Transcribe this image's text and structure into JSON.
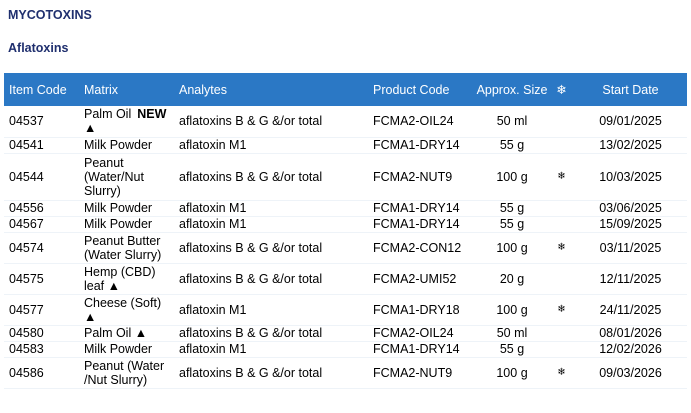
{
  "section_title": "MYCOTOXINS",
  "subsection_title": "Aflatoxins",
  "headers": {
    "item_code": "Item Code",
    "matrix": "Matrix",
    "analytes": "Analytes",
    "product_code": "Product Code",
    "approx_size": "Approx. Size",
    "special": "❄",
    "start_date": "Start Date"
  },
  "rows": [
    {
      "item_code": "04537",
      "matrix": "Palm Oil",
      "new": "NEW",
      "triangle": "▲",
      "analytes": "aflatoxins B & G &/or total",
      "product_code": "FCMA2-OIL24",
      "size": "50 ml",
      "frozen": "",
      "start_date": "09/01/2025"
    },
    {
      "item_code": "04541",
      "matrix": "Milk Powder",
      "new": "",
      "triangle": "",
      "analytes": "aflatoxin M1",
      "product_code": "FCMA1-DRY14",
      "size": "55 g",
      "frozen": "",
      "start_date": "13/02/2025"
    },
    {
      "item_code": "04544",
      "matrix": "Peanut (Water/Nut Slurry)",
      "new": "",
      "triangle": "",
      "analytes": "aflatoxins B & G &/or total",
      "product_code": "FCMA2-NUT9",
      "size": "100 g",
      "frozen": "❄",
      "start_date": "10/03/2025"
    },
    {
      "item_code": "04556",
      "matrix": "Milk Powder",
      "new": "",
      "triangle": "",
      "analytes": "aflatoxin M1",
      "product_code": "FCMA1-DRY14",
      "size": "55 g",
      "frozen": "",
      "start_date": "03/06/2025"
    },
    {
      "item_code": "04567",
      "matrix": "Milk Powder",
      "new": "",
      "triangle": "",
      "analytes": "aflatoxin M1",
      "product_code": "FCMA1-DRY14",
      "size": "55 g",
      "frozen": "",
      "start_date": "15/09/2025"
    },
    {
      "item_code": "04574",
      "matrix": "Peanut Butter (Water Slurry)",
      "new": "",
      "triangle": "",
      "analytes": "aflatoxins B & G &/or total",
      "product_code": "FCMA2-CON12",
      "size": "100 g",
      "frozen": "❄",
      "start_date": "03/11/2025"
    },
    {
      "item_code": "04575",
      "matrix": "Hemp (CBD) leaf",
      "new": "",
      "triangle": "▲",
      "analytes": "aflatoxins B & G &/or total",
      "product_code": "FCMA2-UMI52",
      "size": "20 g",
      "frozen": "",
      "start_date": "12/11/2025"
    },
    {
      "item_code": "04577",
      "matrix": "Cheese (Soft)",
      "new": "",
      "triangle": "▲",
      "analytes": "aflatoxin M1",
      "product_code": "FCMA1-DRY18",
      "size": "100 g",
      "frozen": "❄",
      "start_date": "24/11/2025"
    },
    {
      "item_code": "04580",
      "matrix": "Palm Oil",
      "new": "",
      "triangle": "▲",
      "analytes": "aflatoxins B & G &/or total",
      "product_code": "FCMA2-OIL24",
      "size": "50 ml",
      "frozen": "",
      "start_date": "08/01/2026"
    },
    {
      "item_code": "04583",
      "matrix": "Milk Powder",
      "new": "",
      "triangle": "",
      "analytes": "aflatoxin M1",
      "product_code": "FCMA1-DRY14",
      "size": "55 g",
      "frozen": "",
      "start_date": "12/02/2026"
    },
    {
      "item_code": "04586",
      "matrix": "Peanut (Water /Nut Slurry)",
      "new": "",
      "triangle": "",
      "analytes": "aflatoxins B & G &/or total",
      "product_code": "FCMA2-NUT9",
      "size": "100 g",
      "frozen": "❄",
      "start_date": "09/03/2026"
    }
  ]
}
